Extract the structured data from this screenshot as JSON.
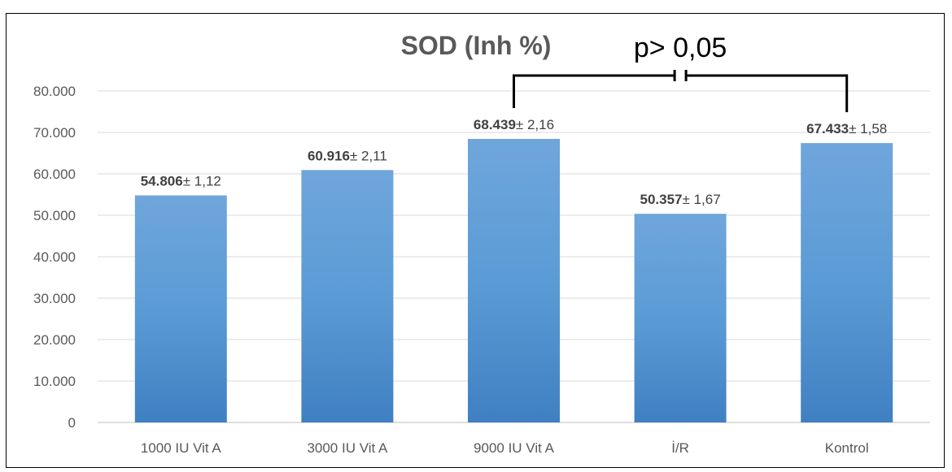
{
  "chart_data": {
    "type": "bar",
    "title": "SOD (Inh %)",
    "xlabel": "",
    "ylabel": "",
    "categories": [
      "1000 IU Vit A",
      "3000 IU Vit A",
      "9000 IU Vit A",
      "İ/R",
      "Kontrol"
    ],
    "values": [
      54.806,
      60.916,
      68.439,
      50.357,
      67.433
    ],
    "value_labels": [
      "54.806",
      "60.916",
      "68.439",
      "50.357",
      "67.433"
    ],
    "error_labels": [
      "± 1,12",
      "± 2,11",
      "± 2,16",
      "± 1,67",
      "± 1,58"
    ],
    "y_tick_labels": [
      "0",
      "10.000",
      "20.000",
      "30.000",
      "40.000",
      "50.000",
      "60.000",
      "70.000",
      "80.000"
    ],
    "ylim": [
      0,
      80
    ],
    "grid": true,
    "legend": "none",
    "bar_color": "#5b9bd5",
    "annotation": {
      "text": "p> 0,05",
      "from_category": 2,
      "to_category": 4
    }
  }
}
